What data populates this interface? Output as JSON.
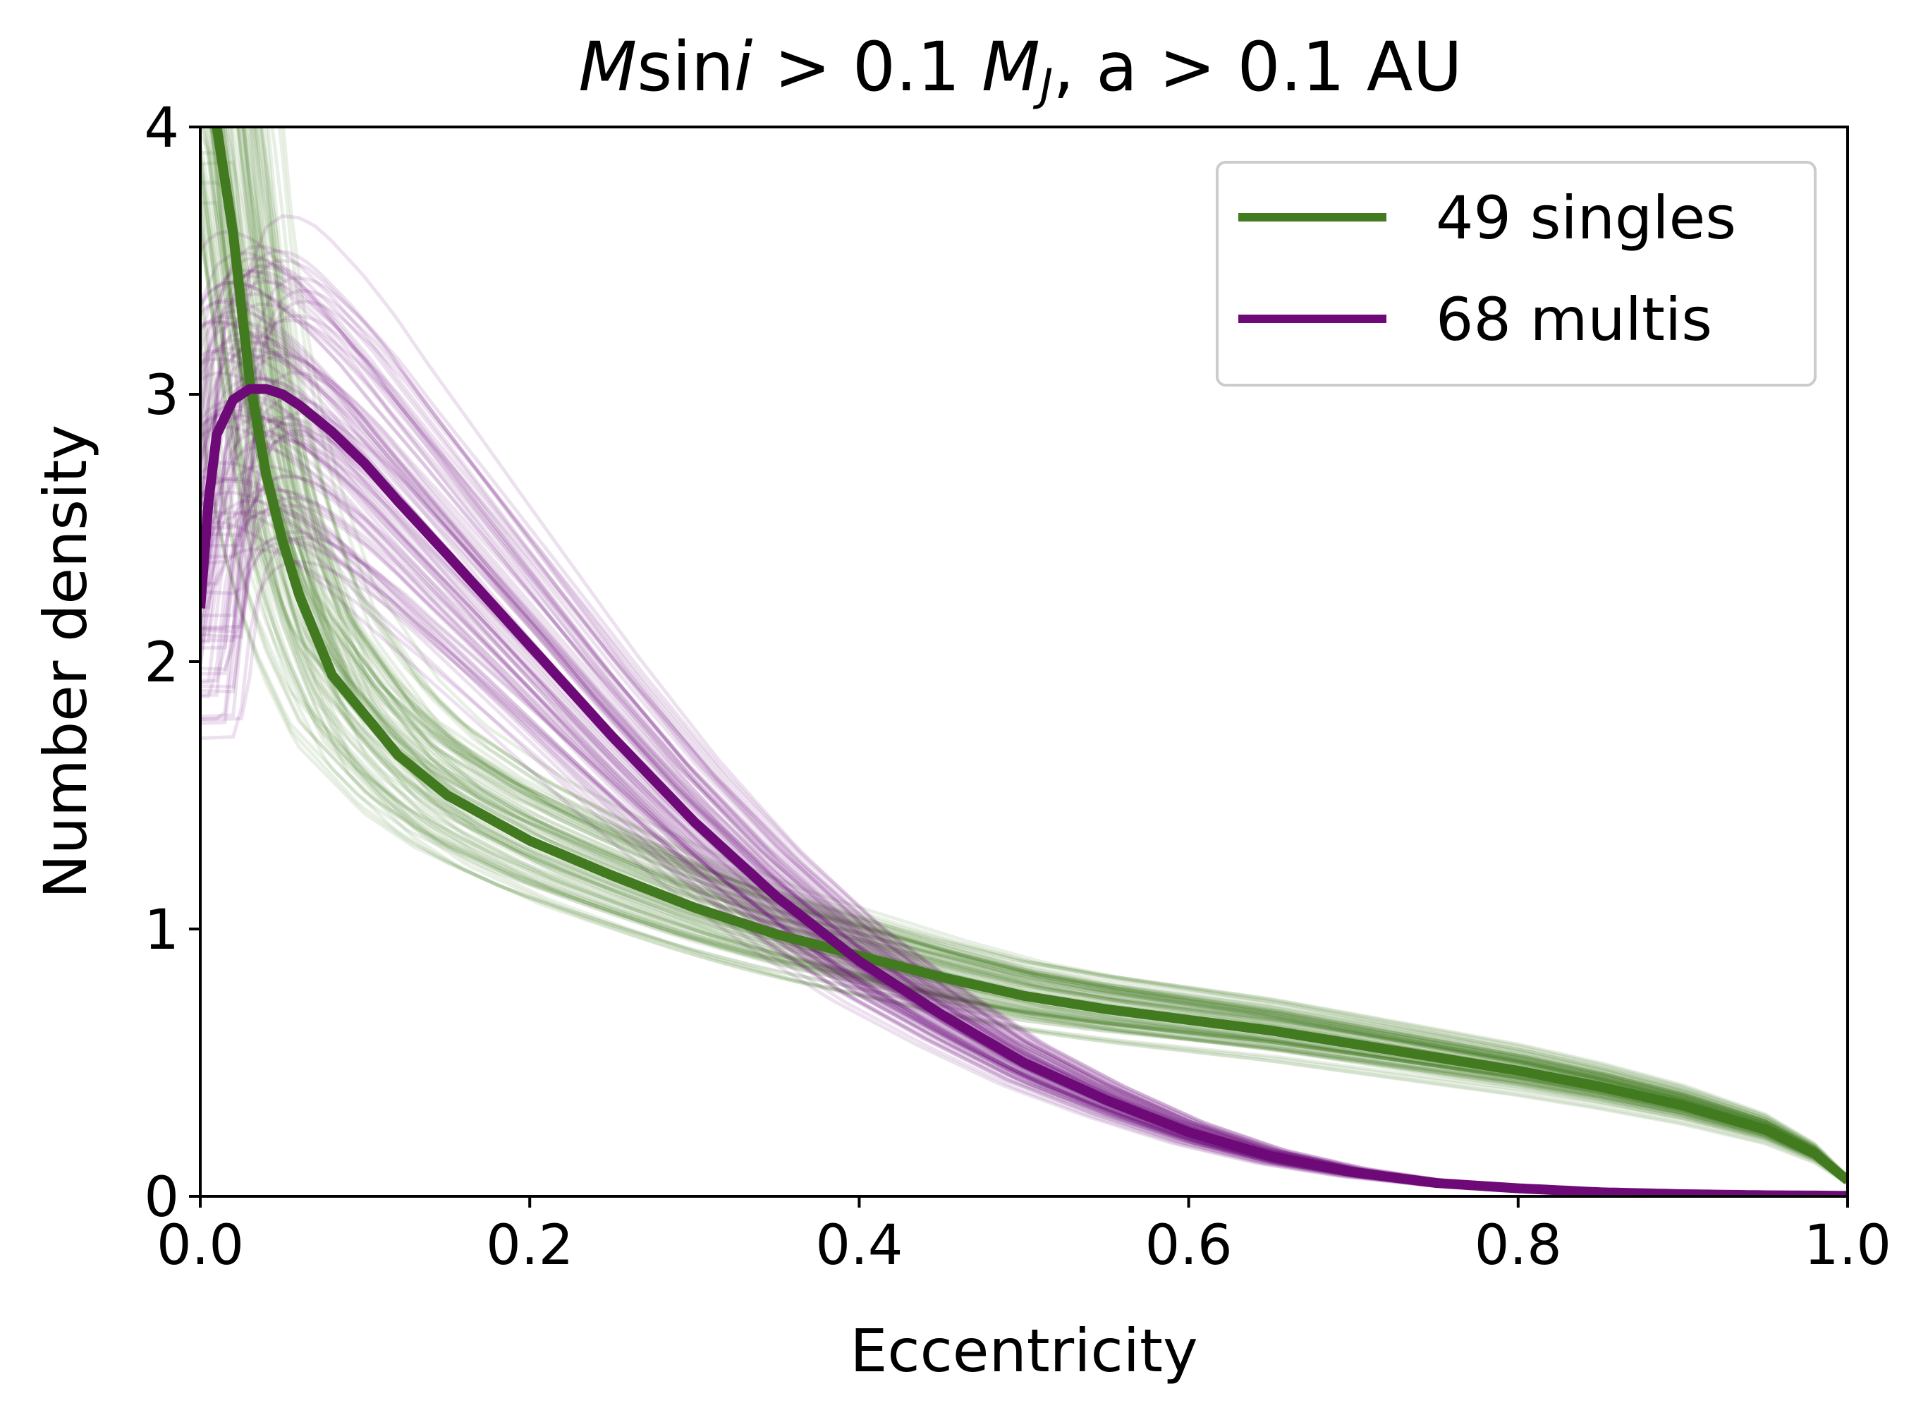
{
  "chart_data": {
    "type": "line",
    "title": {
      "prefix": "M",
      "sin": "sin",
      "i": "i",
      "mid": " > 0.1 ",
      "m": "M",
      "j": "J",
      "suffix": ", a > 0.1 AU"
    },
    "xlabel": "Eccentricity",
    "ylabel": "Number density",
    "xlim": [
      0.0,
      1.0
    ],
    "ylim": [
      0,
      4
    ],
    "xticks": [
      "0.0",
      "0.2",
      "0.4",
      "0.6",
      "0.8",
      "1.0"
    ],
    "yticks": [
      "0",
      "1",
      "2",
      "3",
      "4"
    ],
    "grid": false,
    "legend_position": "top-right",
    "series": [
      {
        "name": "49 singles",
        "color": "#427b1f",
        "x": [
          0.0,
          0.005,
          0.01,
          0.02,
          0.03,
          0.04,
          0.05,
          0.06,
          0.07,
          0.08,
          0.1,
          0.12,
          0.15,
          0.2,
          0.25,
          0.3,
          0.35,
          0.4,
          0.45,
          0.5,
          0.55,
          0.6,
          0.65,
          0.7,
          0.75,
          0.8,
          0.85,
          0.9,
          0.95,
          0.98,
          1.0
        ],
        "y": [
          4.6,
          4.3,
          4.0,
          3.6,
          3.05,
          2.7,
          2.45,
          2.25,
          2.1,
          1.95,
          1.8,
          1.65,
          1.5,
          1.33,
          1.2,
          1.08,
          0.98,
          0.9,
          0.82,
          0.75,
          0.7,
          0.66,
          0.62,
          0.57,
          0.52,
          0.47,
          0.41,
          0.34,
          0.25,
          0.16,
          0.06
        ]
      },
      {
        "name": "68 multis",
        "color": "#6e0a78",
        "x": [
          0.0,
          0.005,
          0.01,
          0.02,
          0.03,
          0.04,
          0.05,
          0.06,
          0.08,
          0.1,
          0.12,
          0.15,
          0.2,
          0.25,
          0.3,
          0.35,
          0.4,
          0.45,
          0.5,
          0.55,
          0.6,
          0.65,
          0.7,
          0.75,
          0.8,
          0.85,
          0.9,
          0.95,
          1.0
        ],
        "y": [
          2.2,
          2.6,
          2.85,
          2.98,
          3.02,
          3.02,
          3.0,
          2.96,
          2.86,
          2.74,
          2.6,
          2.4,
          2.06,
          1.72,
          1.4,
          1.12,
          0.88,
          0.68,
          0.5,
          0.36,
          0.24,
          0.15,
          0.09,
          0.05,
          0.03,
          0.015,
          0.008,
          0.004,
          0.002
        ]
      }
    ]
  }
}
